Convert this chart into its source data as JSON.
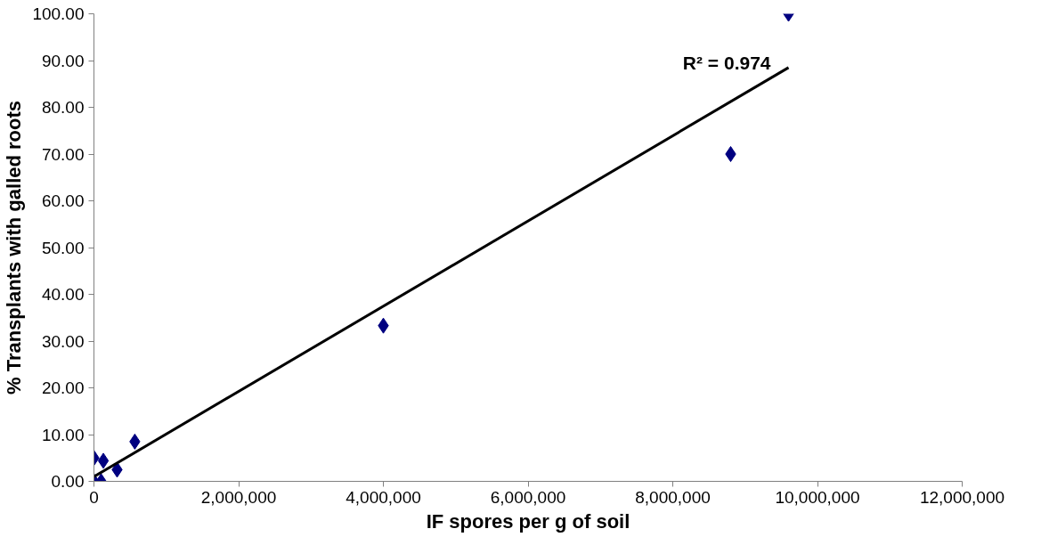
{
  "chart_data": {
    "type": "scatter",
    "xlabel": "IF spores per g of soil",
    "ylabel": "% Transplants with galled roots",
    "xlim": [
      0,
      12000000
    ],
    "ylim": [
      0,
      100
    ],
    "xticks": [
      {
        "value": 0,
        "label": "0"
      },
      {
        "value": 2000000,
        "label": "2,000,000"
      },
      {
        "value": 4000000,
        "label": "4,000,000"
      },
      {
        "value": 6000000,
        "label": "6,000,000"
      },
      {
        "value": 8000000,
        "label": "8,000,000"
      },
      {
        "value": 10000000,
        "label": "10,000,000"
      },
      {
        "value": 12000000,
        "label": "12,000,000"
      }
    ],
    "yticks": [
      {
        "value": 0,
        "label": "0.00"
      },
      {
        "value": 10,
        "label": "10.00"
      },
      {
        "value": 20,
        "label": "20.00"
      },
      {
        "value": 30,
        "label": "30.00"
      },
      {
        "value": 40,
        "label": "40.00"
      },
      {
        "value": 50,
        "label": "50.00"
      },
      {
        "value": 60,
        "label": "60.00"
      },
      {
        "value": 70,
        "label": "70.00"
      },
      {
        "value": 80,
        "label": "80.00"
      },
      {
        "value": 90,
        "label": "90.00"
      },
      {
        "value": 100,
        "label": "100.00"
      }
    ],
    "grid": false,
    "series": [
      {
        "marker": "diamond",
        "color": "#000080",
        "x": [
          0,
          100000,
          0,
          130000,
          320000,
          565000,
          4000000,
          8800000,
          9600000
        ],
        "values": [
          0,
          0,
          5,
          4.4,
          2.5,
          8.5,
          33.3,
          70,
          100
        ]
      },
      {
        "type": "line",
        "color": "#000000",
        "line_style": "solid",
        "x": [
          0,
          9600000
        ],
        "values": [
          1,
          88.5
        ]
      }
    ],
    "annotations": [
      "R² = 0.974"
    ]
  }
}
